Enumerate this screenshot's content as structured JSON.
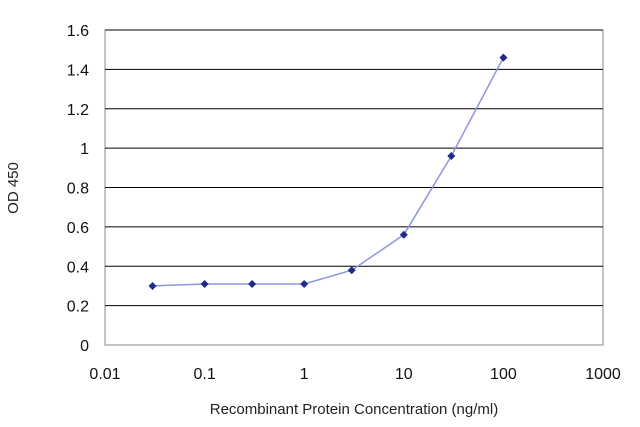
{
  "chart_data": {
    "type": "line",
    "xlabel": "Recombinant Protein Concentration (ng/ml)",
    "ylabel": "OD 450",
    "x_scale": "log",
    "xlim": [
      0.01,
      1000
    ],
    "ylim": [
      0,
      1.6
    ],
    "x_ticks": [
      "0.01",
      "0.1",
      "1",
      "10",
      "100",
      "1000"
    ],
    "y_ticks": [
      "0",
      "0.2",
      "0.4",
      "0.6",
      "0.8",
      "1",
      "1.2",
      "1.4",
      "1.6"
    ],
    "grid": "horizontal",
    "colors": {
      "line": "#8f95e0",
      "marker": "#1f2a8a"
    },
    "series": [
      {
        "x": [
          0.03,
          0.1,
          0.3,
          1,
          3,
          10,
          30,
          100
        ],
        "y": [
          0.3,
          0.31,
          0.31,
          0.31,
          0.38,
          0.56,
          0.96,
          1.46
        ]
      }
    ]
  }
}
